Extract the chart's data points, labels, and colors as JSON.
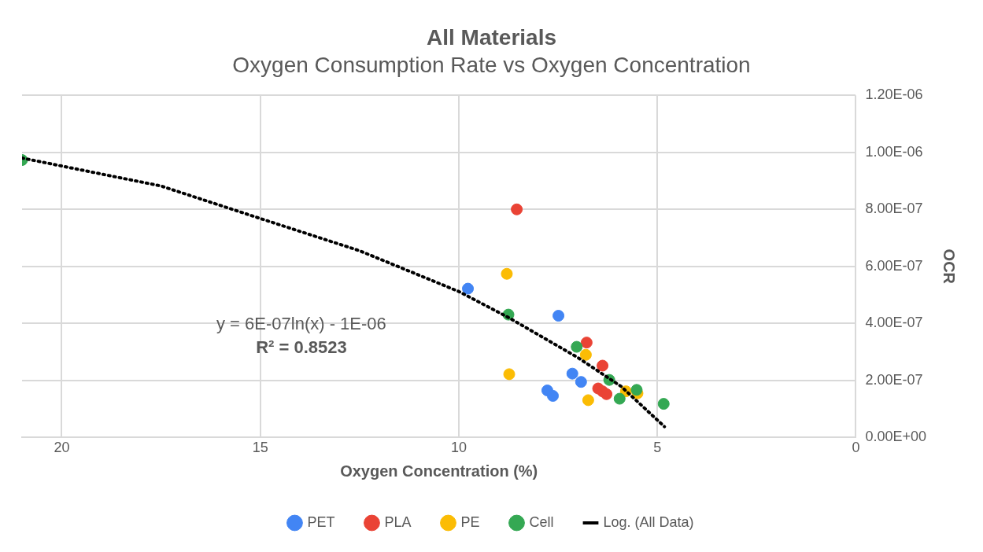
{
  "chart_data": {
    "type": "scatter",
    "title": "All Materials",
    "subtitle": "Oxygen Consumption Rate vs Oxygen Concentration",
    "xlabel": "Oxygen Concentration (%)",
    "ylabel": "OCR",
    "xlim": [
      21,
      0
    ],
    "xticks": [
      20,
      15,
      10,
      5,
      0
    ],
    "ylim": [
      0,
      1.2e-06
    ],
    "yticks": [
      {
        "value": 0,
        "label": "0.00E+00"
      },
      {
        "value": 2e-07,
        "label": "2.00E-07"
      },
      {
        "value": 4e-07,
        "label": "4.00E-07"
      },
      {
        "value": 6e-07,
        "label": "6.00E-07"
      },
      {
        "value": 8e-07,
        "label": "8.00E-07"
      },
      {
        "value": 1e-06,
        "label": "1.00E-06"
      },
      {
        "value": 1.2e-06,
        "label": "1.20E-06"
      }
    ],
    "grid": true,
    "legend": "bottom",
    "marker": "circle",
    "series": [
      {
        "name": "PET",
        "color": "#4285f4",
        "x": [
          9.77,
          7.49,
          7.14,
          6.92,
          7.77,
          7.63
        ],
        "values": [
          5.22e-07,
          4.27e-07,
          2.24e-07,
          1.95e-07,
          1.65e-07,
          1.46e-07
        ]
      },
      {
        "name": "PLA",
        "color": "#ea4335",
        "x": [
          8.54,
          6.78,
          6.38,
          6.49,
          6.38,
          6.28
        ],
        "values": [
          8e-07,
          3.33e-07,
          2.52e-07,
          1.72e-07,
          1.62e-07,
          1.52e-07
        ]
      },
      {
        "name": "PE",
        "color": "#fbbc04",
        "x": [
          8.79,
          8.73,
          6.8,
          6.74,
          5.79,
          5.5
        ],
        "values": [
          5.74e-07,
          2.22e-07,
          2.9e-07,
          1.31e-07,
          1.62e-07,
          1.55e-07
        ]
      },
      {
        "name": "Cell",
        "color": "#34a853",
        "x": [
          21,
          8.75,
          7.03,
          6.21,
          5.95,
          5.52,
          4.84
        ],
        "values": [
          9.73e-07,
          4.31e-07,
          3.18e-07,
          2.02e-07,
          1.36e-07,
          1.67e-07,
          1.18e-07
        ]
      },
      {
        "name": "Log. (All Data)",
        "type": "line",
        "color": "#000000",
        "line_style": "dotted",
        "marker": "none",
        "x": [
          21,
          20,
          17.5,
          15,
          12.5,
          10,
          8.75,
          7,
          5.91,
          4.82
        ],
        "values": [
          9.8e-07,
          9.52e-07,
          8.82e-07,
          7.68e-07,
          6.55e-07,
          5.12e-07,
          4.21e-07,
          2.8e-07,
          1.79e-07,
          3.8e-08
        ]
      }
    ],
    "annotations": [
      "y = 6E-07ln(x) - 1E-06",
      "R² = 0.8523"
    ]
  }
}
